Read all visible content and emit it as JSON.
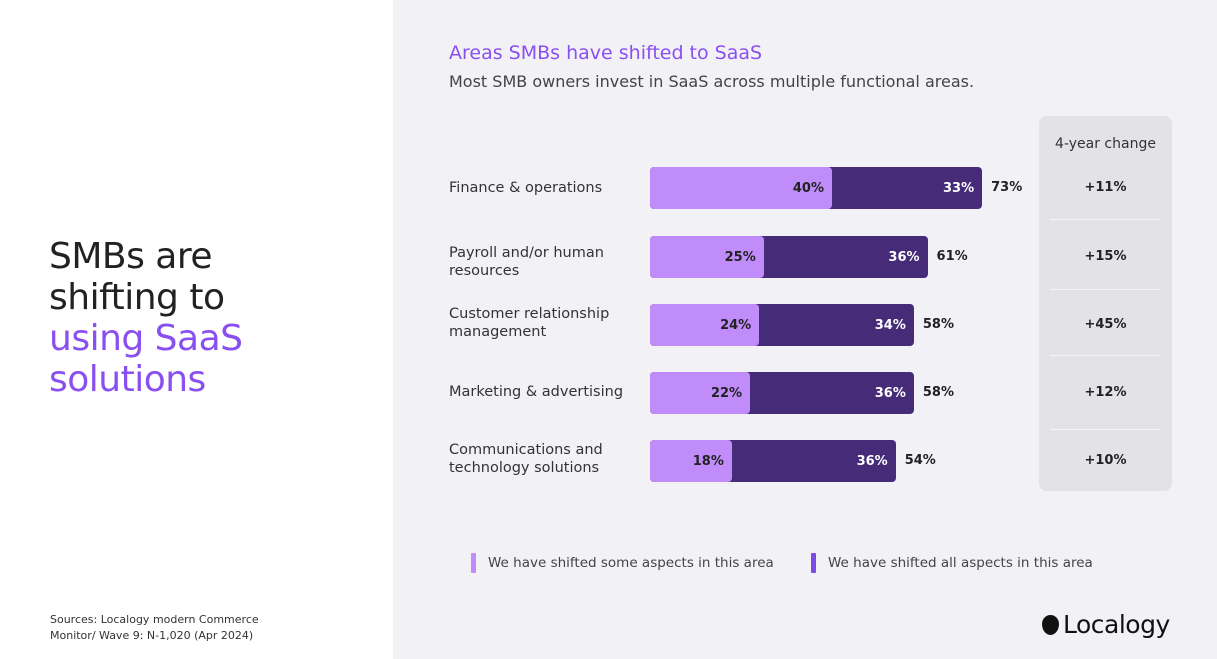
{
  "left": {
    "headline_line1": "SMBs are",
    "headline_line2": "shifting to",
    "headline_accent1": "using SaaS",
    "headline_accent2": "solutions",
    "sources_line1": "Sources: Localogy modern Commerce",
    "sources_line2": "Monitor/ Wave 9: N-1,020 (Apr 2024)"
  },
  "logo": {
    "text": "Localogy"
  },
  "colors": {
    "some": "#c08cfa",
    "all": "#452b78",
    "accent": "#8a4ff0"
  },
  "chart_data": {
    "type": "bar",
    "stacked": true,
    "orientation": "horizontal",
    "title": "Areas SMBs have shifted to SaaS",
    "subtitle": "Most SMB owners invest in SaaS across multiple functional areas.",
    "categories": [
      "Finance & operations",
      "Payroll and/or human resources",
      "Customer relationship management",
      "Marketing & advertising",
      "Communications and technology solutions"
    ],
    "series": [
      {
        "name": "We have shifted some aspects in this area",
        "values": [
          40,
          25,
          24,
          22,
          18
        ]
      },
      {
        "name": "We have shifted all aspects in this area",
        "values": [
          33,
          36,
          34,
          36,
          36
        ]
      }
    ],
    "totals": [
      73,
      61,
      58,
      58,
      54
    ],
    "change_header": "4-year change",
    "change": [
      "+11%",
      "+15%",
      "+45%",
      "+12%",
      "+10%"
    ],
    "legend_position": "bottom"
  }
}
